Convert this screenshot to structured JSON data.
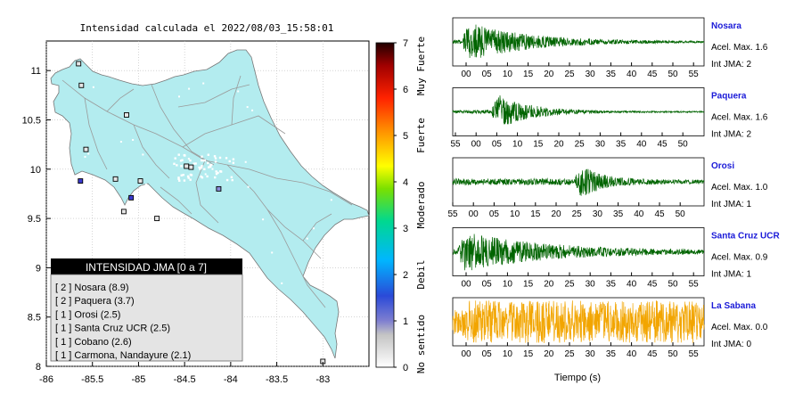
{
  "map": {
    "title": "Intensidad calculada el 2022/08/03_15:58:01",
    "x_ticks": [
      "-86",
      "-85.5",
      "-85",
      "-84.5",
      "-84",
      "-83.5",
      "-83"
    ],
    "y_ticks": [
      "11",
      "10.5",
      "10",
      "9.5",
      "9",
      "8.5",
      "8"
    ],
    "xlim": [
      -86,
      -82.5
    ],
    "ylim": [
      8,
      11.3
    ],
    "land_color": "#b3ecef",
    "stations": [
      {
        "lon": -85.65,
        "lat": 11.07,
        "int": 0
      },
      {
        "lon": -85.62,
        "lat": 10.85,
        "int": 0
      },
      {
        "lon": -85.13,
        "lat": 10.55,
        "int": 0
      },
      {
        "lon": -85.57,
        "lat": 10.2,
        "int": 0
      },
      {
        "lon": -85.63,
        "lat": 9.88,
        "int": 2
      },
      {
        "lon": -85.25,
        "lat": 9.9,
        "int": 0
      },
      {
        "lon": -84.98,
        "lat": 9.88,
        "int": 0
      },
      {
        "lon": -84.48,
        "lat": 10.03,
        "int": 0
      },
      {
        "lon": -84.43,
        "lat": 10.02,
        "int": 0
      },
      {
        "lon": -84.13,
        "lat": 9.8,
        "int": 1
      },
      {
        "lon": -85.08,
        "lat": 9.71,
        "int": 2
      },
      {
        "lon": -85.16,
        "lat": 9.57,
        "int": 0
      },
      {
        "lon": -84.8,
        "lat": 9.5,
        "int": 0
      },
      {
        "lon": -83.0,
        "lat": 8.05,
        "int": 0
      }
    ]
  },
  "legend": {
    "title": "INTENSIDAD JMA [0 a 7]",
    "items": [
      "[ 2 ]  Nosara (8.9)",
      "[ 2 ]  Paquera (3.7)",
      "[ 1 ]  Orosi (2.5)",
      "[ 1 ]  Santa Cruz UCR (2.5)",
      "[ 1 ]  Cobano (2.6)",
      "[ 1 ]  Carmona, Nandayure (2.1)"
    ]
  },
  "colorbar": {
    "ticks": [
      "0",
      "1",
      "2",
      "3",
      "4",
      "5",
      "6",
      "7"
    ],
    "labels": [
      {
        "text": "No sentido",
        "from": 0,
        "to": 1
      },
      {
        "text": "Debil",
        "from": 1,
        "to": 3
      },
      {
        "text": "Moderado",
        "from": 3,
        "to": 4
      },
      {
        "text": "Fuerte",
        "from": 4,
        "to": 6
      },
      {
        "text": "Muy Fuerte",
        "from": 6,
        "to": 7
      }
    ],
    "range": [
      0,
      7
    ]
  },
  "xlabel": "Tiempo (s)",
  "chart_data": [
    {
      "type": "line",
      "name": "Nosara",
      "accel_label": "Acel. Max. 1.6",
      "int_label": "Int JMA: 2",
      "color": "#006400",
      "x_ticks": [
        "00",
        "05",
        "10",
        "15",
        "20",
        "25",
        "30",
        "35",
        "40",
        "45",
        "50",
        "55"
      ],
      "x_start": -2,
      "onset": 0,
      "decay": 14,
      "amp": 1.0,
      "noise": 0.04
    },
    {
      "type": "line",
      "name": "Paquera",
      "accel_label": "Acel. Max. 1.6",
      "int_label": "Int JMA: 2",
      "color": "#006400",
      "x_ticks": [
        "55",
        "00",
        "05",
        "10",
        "15",
        "20",
        "25",
        "30",
        "35",
        "40",
        "45",
        "50"
      ],
      "x_start": -7,
      "onset": 2,
      "decay": 8,
      "amp": 1.0,
      "noise": 0.03
    },
    {
      "type": "line",
      "name": "Orosi",
      "accel_label": "Acel. Max. 1.0",
      "int_label": "Int JMA: 1",
      "color": "#006400",
      "x_ticks": [
        "55",
        "00",
        "05",
        "10",
        "15",
        "20",
        "25",
        "30",
        "35",
        "40",
        "45",
        "50"
      ],
      "x_start": -5,
      "onset": 24,
      "decay": 5,
      "amp": 1.0,
      "noise": 0.1
    },
    {
      "type": "line",
      "name": "Santa Cruz UCR",
      "accel_label": "Acel. Max. 0.9",
      "int_label": "Int JMA: 1",
      "color": "#006400",
      "x_ticks": [
        "00",
        "05",
        "10",
        "15",
        "20",
        "25",
        "30",
        "35",
        "40",
        "45",
        "50",
        "55"
      ],
      "x_start": -2,
      "onset": -1,
      "decay": 18,
      "amp": 1.0,
      "noise": 0.08
    },
    {
      "type": "line",
      "name": "La Sabana",
      "accel_label": "Acel. Max. 0.0",
      "int_label": "Int JMA: 0",
      "color": "#f2a500",
      "x_ticks": [
        "00",
        "05",
        "10",
        "15",
        "20",
        "25",
        "30",
        "35",
        "40",
        "45",
        "50",
        "55"
      ],
      "x_start": -2,
      "onset": 0,
      "decay": 1000,
      "amp": 0.55,
      "noise": 0.55
    }
  ]
}
